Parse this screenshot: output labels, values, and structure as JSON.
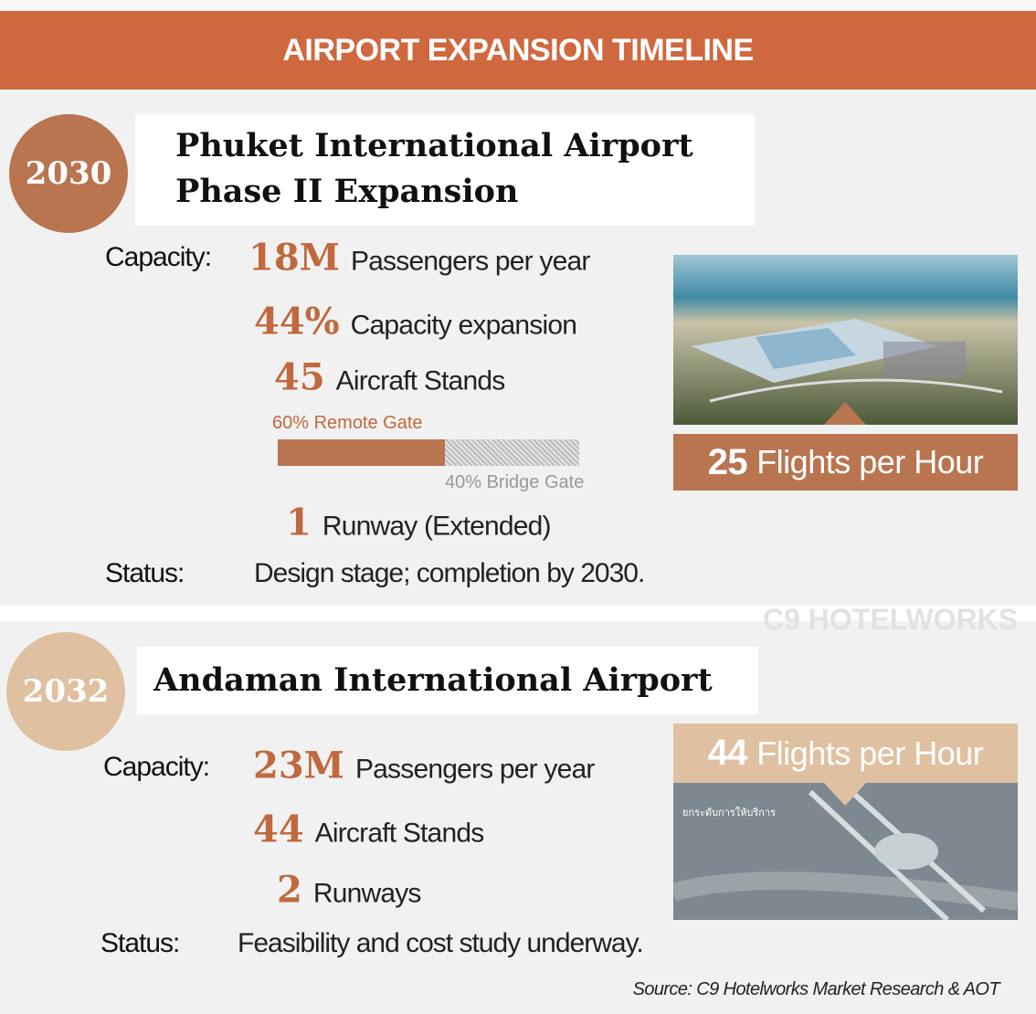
{
  "header": {
    "title": "AIRPORT EXPANSION TIMELINE"
  },
  "sections": [
    {
      "year": "2030",
      "title_lines": [
        "Phuket International Airport",
        "Phase II Expansion"
      ],
      "capacity_label": "Capacity:",
      "items": [
        {
          "value": "18M",
          "text": "Passengers per year"
        },
        {
          "value": "44%",
          "text": "Capacity expansion"
        },
        {
          "value": "45",
          "text": "Aircraft Stands"
        },
        {
          "value": "1",
          "text": "Runway (Extended)"
        }
      ],
      "gates": {
        "remote": "60% Remote Gate",
        "bridge": "40% Bridge Gate"
      },
      "flights": {
        "value": "25",
        "text": "Flights per Hour"
      },
      "status_label": "Status:",
      "status": "Design stage; completion by 2030."
    },
    {
      "year": "2032",
      "title_lines": [
        "Andaman International Airport"
      ],
      "capacity_label": "Capacity:",
      "items": [
        {
          "value": "23M",
          "text": "Passengers per year"
        },
        {
          "value": "44",
          "text": "Aircraft Stands"
        },
        {
          "value": "2",
          "text": "Runways"
        }
      ],
      "flights": {
        "value": "44",
        "text": "Flights per Hour"
      },
      "image_caption": "ยกระดับการให้บริการ",
      "status_label": "Status:",
      "status": "Feasibility and cost study underway."
    }
  ],
  "watermark": "C9 HOTELWORKS",
  "source": "Source: C9 Hotelworks Market Research & AOT"
}
